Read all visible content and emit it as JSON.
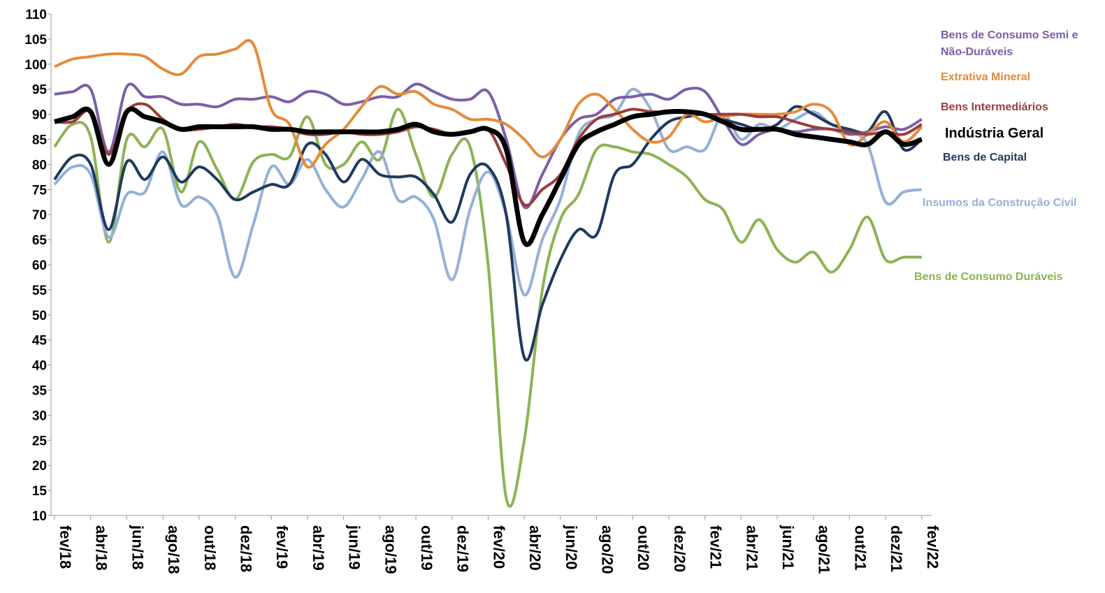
{
  "chart_data": {
    "type": "line",
    "categories": [
      "fev/18",
      null,
      "abr/18",
      null,
      "jun/18",
      null,
      "ago/18",
      null,
      "out/18",
      null,
      "dez/18",
      null,
      "fev/19",
      null,
      "abr/19",
      null,
      "jun/19",
      null,
      "ago/19",
      null,
      "out/19",
      null,
      "dez/19",
      null,
      "fev/20",
      null,
      "abr/20",
      null,
      "jun/20",
      null,
      "ago/20",
      null,
      "out/20",
      null,
      "dez/20",
      null,
      "fev/21",
      null,
      "abr/21",
      null,
      "jun/21",
      null,
      "ago/21",
      null,
      "out/21",
      null,
      "dez/21",
      null,
      "fev/22"
    ],
    "ylim": [
      10,
      110
    ],
    "yticks": [
      10,
      15,
      20,
      25,
      30,
      35,
      40,
      45,
      50,
      55,
      60,
      65,
      70,
      75,
      80,
      85,
      90,
      95,
      100,
      105,
      110
    ],
    "grid": false,
    "series": [
      {
        "name": "Bens de Consumo Duráveis",
        "color": "#8db352",
        "values": [
          83.5,
          88,
          85.5,
          64.5,
          85,
          83.5,
          87,
          74.5,
          84.5,
          79,
          73,
          80.5,
          82,
          81.5,
          89.5,
          80,
          80,
          84.5,
          81,
          91,
          82,
          73.5,
          82,
          83.5,
          60,
          13.5,
          25,
          55,
          69,
          74,
          83,
          83.5,
          82.5,
          82,
          80,
          77.5,
          73,
          71,
          64.5,
          69,
          63,
          60.5,
          62.5,
          58.5,
          63,
          69.5,
          61,
          61.5,
          61.5
        ]
      },
      {
        "name": "Insumos da Construção Civil",
        "color": "#93b0d8",
        "values": [
          76,
          79.5,
          78,
          65.5,
          74,
          74.5,
          82.5,
          72,
          73.5,
          70,
          57.5,
          68,
          79.5,
          76,
          81,
          75,
          71.5,
          77,
          82.5,
          73,
          73.5,
          69,
          57,
          71,
          78.5,
          70,
          54,
          65,
          73,
          86,
          89,
          90,
          95,
          91,
          83,
          83.5,
          83,
          90,
          85,
          88,
          87,
          89,
          90.5,
          88,
          86.5,
          84,
          72.5,
          74.5,
          75
        ]
      },
      {
        "name": "Bens de Capital",
        "color": "#1f3a5f",
        "values": [
          77,
          81.5,
          80,
          67,
          80.5,
          77,
          81.5,
          76.5,
          79.5,
          77,
          73,
          74.5,
          76,
          76,
          84,
          82,
          76.5,
          81,
          78,
          77.5,
          77.5,
          74,
          68.5,
          78,
          79.5,
          70,
          41.5,
          52,
          61,
          67,
          66,
          78,
          80,
          85,
          88.5,
          89.5,
          90,
          89,
          88,
          87,
          88,
          91.5,
          90,
          88,
          87,
          86.5,
          90.5,
          83,
          85
        ]
      },
      {
        "name": "Bens de Consumo Semi e Não-Duráveis",
        "color": "#7b5ea7",
        "values": [
          94,
          94.5,
          95,
          82.5,
          95.5,
          93.5,
          93.5,
          92,
          92,
          91.5,
          93,
          93,
          93.5,
          92.5,
          94.5,
          94,
          92,
          92.5,
          93.5,
          93.5,
          96,
          94.5,
          93,
          93,
          94.5,
          85,
          71.5,
          78,
          85,
          89,
          90,
          93,
          93.5,
          94,
          93,
          95,
          94.5,
          89,
          84,
          86,
          87,
          86.5,
          87,
          87,
          86,
          86.5,
          87.5,
          87,
          89
        ]
      },
      {
        "name": "Extrativa Mineral",
        "color": "#e48b3a",
        "values": [
          99.5,
          101,
          101.5,
          102,
          102,
          101.5,
          99,
          98,
          101.5,
          102,
          103,
          104,
          91,
          88,
          79.5,
          84,
          87,
          91.5,
          95.5,
          94,
          94.5,
          92,
          91,
          89,
          89,
          88,
          85,
          81.5,
          85,
          92,
          94,
          91,
          87,
          84.5,
          85.5,
          90,
          88.5,
          89.5,
          90,
          90,
          90,
          90.5,
          92,
          90.5,
          84,
          86,
          88.5,
          84.5,
          87.5
        ]
      },
      {
        "name": "Bens Intermediários",
        "color": "#9b3d3b",
        "values": [
          88.5,
          88.5,
          90.5,
          82,
          90.5,
          92,
          89,
          87,
          87,
          87.5,
          88,
          87.5,
          87.5,
          87,
          86,
          86,
          86.5,
          86,
          86,
          86.5,
          87.5,
          87,
          86,
          86.5,
          87,
          80,
          72,
          75,
          78,
          85,
          89,
          90,
          91,
          90.5,
          90.5,
          90.5,
          90,
          90,
          90,
          89.5,
          89.5,
          88.5,
          87.5,
          87,
          86.5,
          86,
          86.5,
          86,
          88
        ]
      },
      {
        "name": "Indústria Geral",
        "color": "#000000",
        "values": [
          88.5,
          89.5,
          90.5,
          80,
          90.5,
          89.5,
          88.5,
          87,
          87.5,
          87.5,
          87.5,
          87.5,
          87,
          87,
          86.5,
          86.5,
          86.5,
          86.5,
          86.5,
          87,
          88,
          86.5,
          86,
          86.5,
          87,
          83,
          64.5,
          70,
          77,
          84,
          86.5,
          88,
          89.5,
          90,
          90.5,
          90.5,
          90,
          88.5,
          87,
          87,
          87,
          86,
          85.5,
          85,
          84.5,
          84,
          86.5,
          84,
          85
        ]
      }
    ]
  }
}
